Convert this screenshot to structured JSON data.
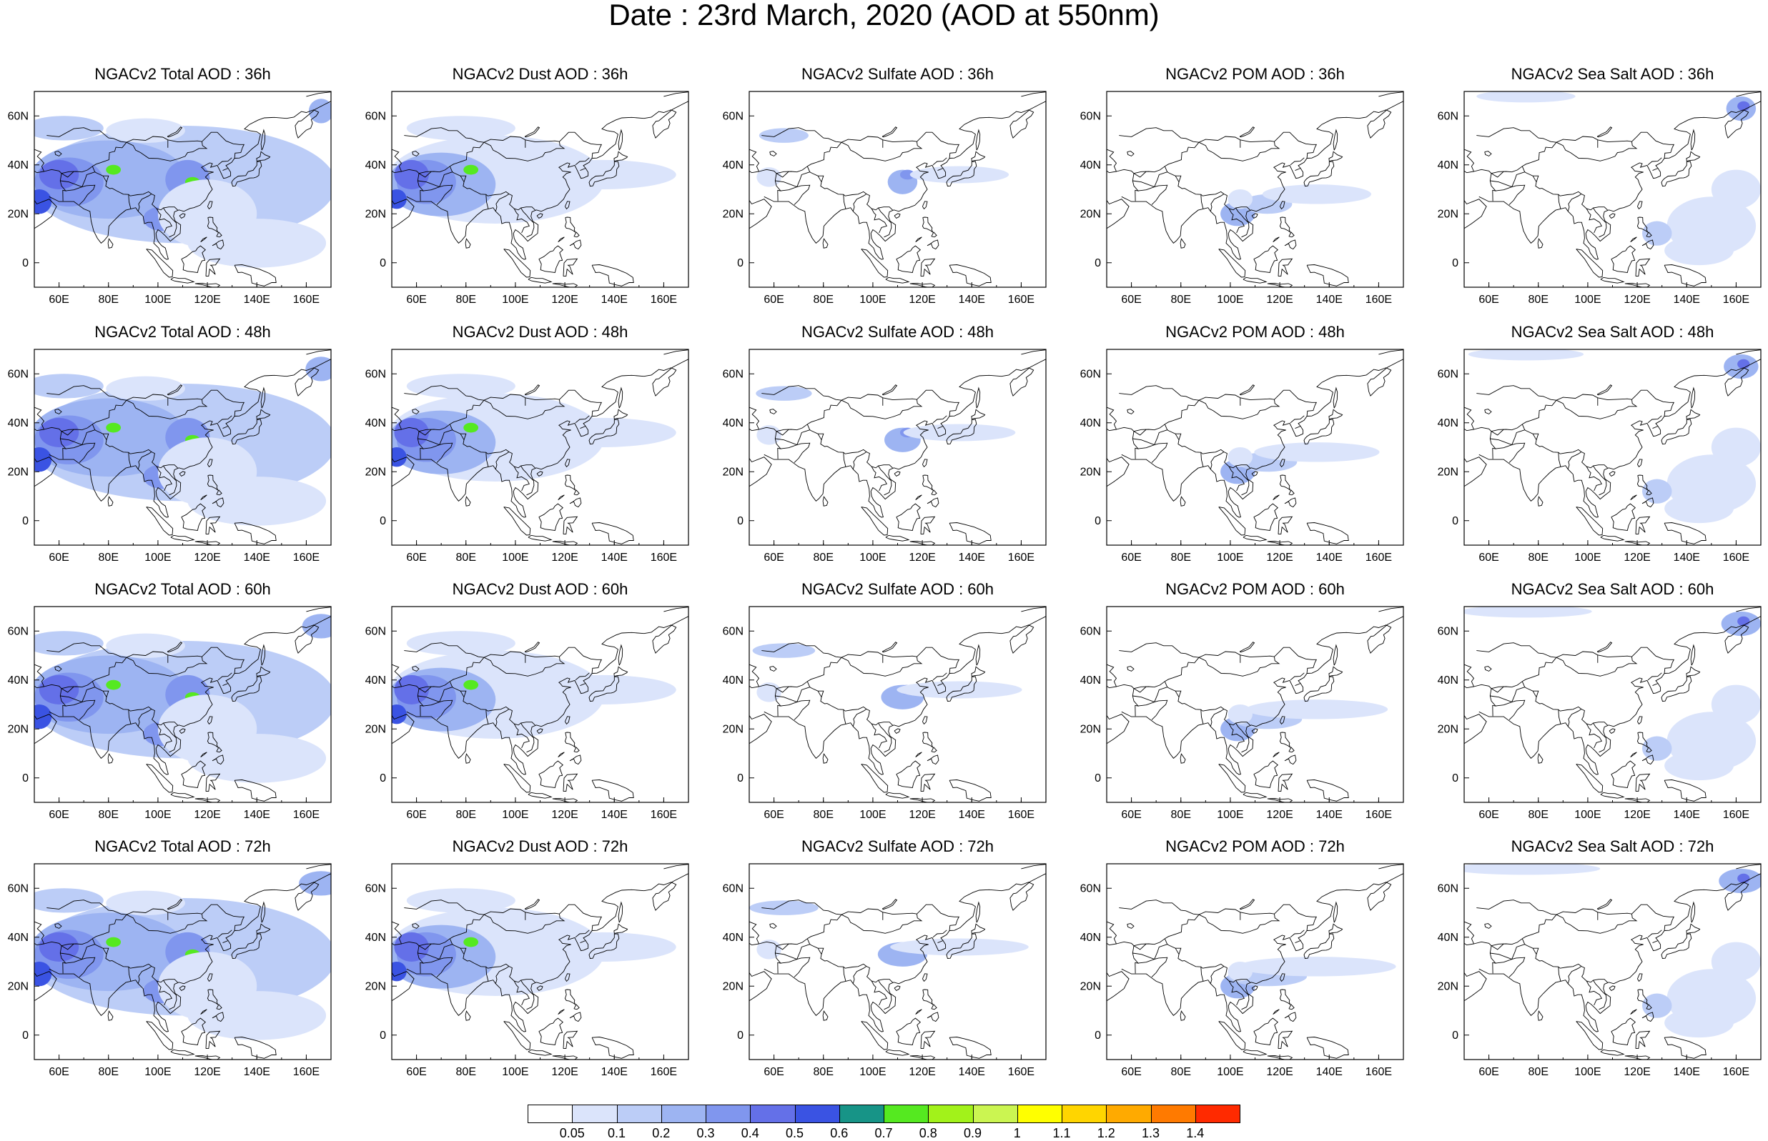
{
  "title": "Date : 23rd March, 2020 (AOD at 550nm)",
  "panels": [
    {
      "row": 0,
      "col": 0,
      "title": "NGACv2 Total AOD : 36h",
      "species": "total",
      "hour": 36
    },
    {
      "row": 0,
      "col": 1,
      "title": "NGACv2 Dust AOD : 36h",
      "species": "dust",
      "hour": 36
    },
    {
      "row": 0,
      "col": 2,
      "title": "NGACv2 Sulfate AOD : 36h",
      "species": "sulfate",
      "hour": 36
    },
    {
      "row": 0,
      "col": 3,
      "title": "NGACv2 POM AOD : 36h",
      "species": "pom",
      "hour": 36
    },
    {
      "row": 0,
      "col": 4,
      "title": "NGACv2 Sea Salt AOD : 36h",
      "species": "seasalt",
      "hour": 36
    },
    {
      "row": 1,
      "col": 0,
      "title": "NGACv2 Total AOD : 48h",
      "species": "total",
      "hour": 48
    },
    {
      "row": 1,
      "col": 1,
      "title": "NGACv2 Dust AOD : 48h",
      "species": "dust",
      "hour": 48
    },
    {
      "row": 1,
      "col": 2,
      "title": "NGACv2 Sulfate AOD : 48h",
      "species": "sulfate",
      "hour": 48
    },
    {
      "row": 1,
      "col": 3,
      "title": "NGACv2 POM AOD : 48h",
      "species": "pom",
      "hour": 48
    },
    {
      "row": 1,
      "col": 4,
      "title": "NGACv2 Sea Salt AOD : 48h",
      "species": "seasalt",
      "hour": 48
    },
    {
      "row": 2,
      "col": 0,
      "title": "NGACv2 Total AOD : 60h",
      "species": "total",
      "hour": 60
    },
    {
      "row": 2,
      "col": 1,
      "title": "NGACv2 Dust AOD : 60h",
      "species": "dust",
      "hour": 60
    },
    {
      "row": 2,
      "col": 2,
      "title": "NGACv2 Sulfate AOD : 60h",
      "species": "sulfate",
      "hour": 60
    },
    {
      "row": 2,
      "col": 3,
      "title": "NGACv2 POM AOD : 60h",
      "species": "pom",
      "hour": 60
    },
    {
      "row": 2,
      "col": 4,
      "title": "NGACv2 Sea Salt AOD : 60h",
      "species": "seasalt",
      "hour": 60
    },
    {
      "row": 3,
      "col": 0,
      "title": "NGACv2 Total AOD : 72h",
      "species": "total",
      "hour": 72
    },
    {
      "row": 3,
      "col": 1,
      "title": "NGACv2 Dust AOD : 72h",
      "species": "dust",
      "hour": 72
    },
    {
      "row": 3,
      "col": 2,
      "title": "NGACv2 Sulfate AOD : 72h",
      "species": "sulfate",
      "hour": 72
    },
    {
      "row": 3,
      "col": 3,
      "title": "NGACv2 POM AOD : 72h",
      "species": "pom",
      "hour": 72
    },
    {
      "row": 3,
      "col": 4,
      "title": "NGACv2 Sea Salt  AOD : 72h",
      "species": "seasalt",
      "hour": 72
    }
  ],
  "map": {
    "lon_range": [
      50,
      170
    ],
    "lat_range": [
      -10,
      70
    ],
    "lon_ticks": [
      "60E",
      "80E",
      "100E",
      "120E",
      "140E",
      "160E"
    ],
    "lon_tick_values": [
      60,
      80,
      100,
      120,
      140,
      160
    ],
    "lat_ticks": [
      "0",
      "20N",
      "40N",
      "60N"
    ],
    "lat_tick_values": [
      0,
      20,
      40,
      60
    ]
  },
  "colorbar": {
    "labels": [
      "0.05",
      "0.1",
      "0.2",
      "0.3",
      "0.4",
      "0.5",
      "0.6",
      "0.7",
      "0.8",
      "0.9",
      "1",
      "1.1",
      "1.2",
      "1.3",
      "1.4"
    ],
    "colors": [
      "#ffffff",
      "#dbe4fb",
      "#bccdf7",
      "#9db4f2",
      "#8096ee",
      "#6470e8",
      "#3a53e3",
      "#0f6bf0",
      "#179487",
      "#55e920",
      "#a2f21a",
      "#cbf551",
      "#ffff00",
      "#ffd500",
      "#ffaa00",
      "#ff7a00",
      "#ff2a00"
    ]
  }
}
